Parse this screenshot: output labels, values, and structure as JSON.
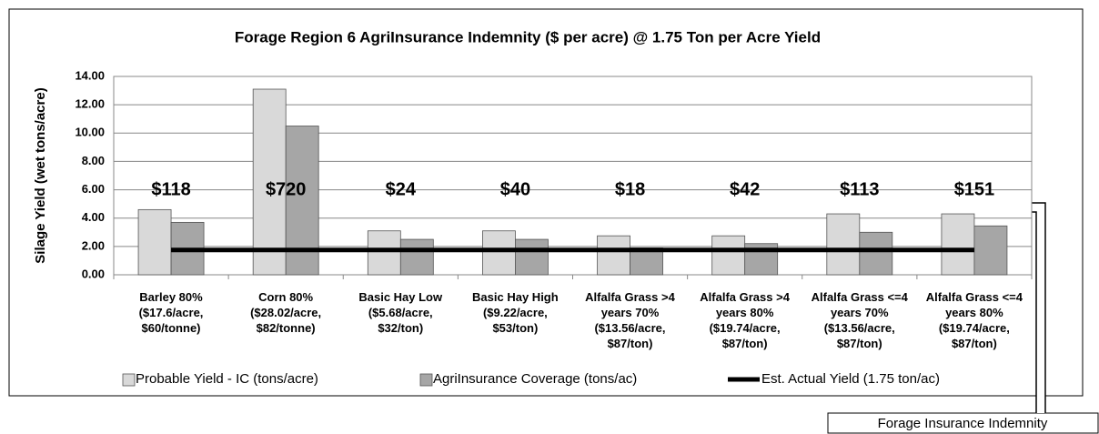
{
  "chart_data": {
    "type": "bar",
    "title": "Forage Region 6 AgriInsurance Indemnity ($ per acre) @ 1.75 Ton per Acre Yield",
    "y_label": "Silage Yield (wet tons/acre)",
    "categories": [
      "Barley 80%\n($17.6/acre,\n$60/tonne)",
      "Corn 80%\n($28.02/acre,\n$82/tonne)",
      "Basic Hay Low\n($5.68/acre,\n$32/ton)",
      "Basic Hay High\n($9.22/acre,\n$53/ton)",
      "Alfalfa Grass >4\nyears 70%\n($13.56/acre,\n$87/ton)",
      "Alfalfa Grass >4\nyears 80%\n($19.74/acre,\n$87/ton)",
      "Alfalfa Grass <=4\nyears 70%\n($13.56/acre,\n$87/ton)",
      "Alfalfa Grass <=4\nyears 80%\n($19.74/acre,\n$87/ton)"
    ],
    "series": [
      {
        "name": "Probable Yield - IC (tons/acre)",
        "color": "#d9d9d9",
        "type": "bar",
        "values": [
          4.6,
          13.1,
          3.1,
          3.1,
          2.75,
          2.75,
          4.3,
          4.3
        ]
      },
      {
        "name": "AgriInsurance Coverage (tons/ac)",
        "color": "#a6a6a6",
        "type": "bar",
        "values": [
          3.7,
          10.5,
          2.5,
          2.5,
          1.9,
          2.2,
          3.0,
          3.45
        ]
      },
      {
        "name": "Est. Actual Yield (1.75 ton/ac)",
        "color": "#000000",
        "type": "line",
        "values": [
          1.75,
          1.75,
          1.75,
          1.75,
          1.75,
          1.75,
          1.75,
          1.75
        ]
      }
    ],
    "annotations": [
      "$118",
      "$720",
      "$24",
      "$40",
      "$18",
      "$42",
      "$113",
      "$151"
    ],
    "callout": "Forage Insurance Indemnity",
    "ylim": [
      0,
      14
    ],
    "yticks": [
      {
        "value": 0,
        "label": "0.00"
      },
      {
        "value": 2,
        "label": "2.00"
      },
      {
        "value": 4,
        "label": "4.00"
      },
      {
        "value": 6,
        "label": "6.00"
      },
      {
        "value": 8,
        "label": "8.00"
      },
      {
        "value": 10,
        "label": "10.00"
      },
      {
        "value": 12,
        "label": "12.00"
      },
      {
        "value": 14,
        "label": "14.00"
      }
    ],
    "grid": true,
    "legend": "bottom"
  }
}
